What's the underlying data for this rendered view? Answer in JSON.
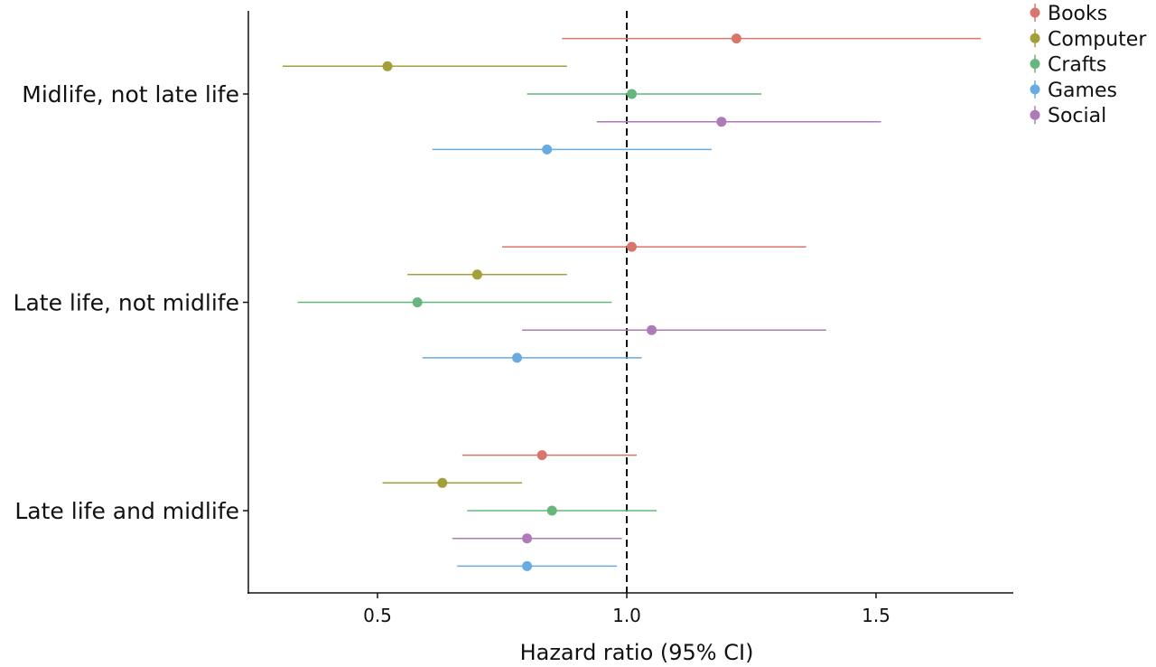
{
  "chart_data": {
    "type": "forest",
    "title": "",
    "xlabel": "Hazard ratio (95% CI)",
    "ylabel": "",
    "xlim": [
      0.25,
      1.78
    ],
    "xticks": [
      "0.5",
      "1.0",
      "1.5"
    ],
    "xtick_values": [
      0.5,
      1.0,
      1.5
    ],
    "reference_line": 1.0,
    "grid": false,
    "legend_placement": "top-right",
    "legend": [
      "Books",
      "Computer",
      "Crafts",
      "Games",
      "Social"
    ],
    "colors": {
      "Books": "#D9766C",
      "Computer": "#A3A03A",
      "Crafts": "#66B67E",
      "Games": "#68AAE2",
      "Social": "#AE7AB8"
    },
    "row_order": [
      "Books",
      "Computer",
      "Crafts",
      "Social",
      "Games"
    ],
    "groups": [
      {
        "label": "Midlife, not late life",
        "points": [
          {
            "series": "Books",
            "hr": 1.22,
            "lo": 0.87,
            "hi": 1.71
          },
          {
            "series": "Computer",
            "hr": 0.52,
            "lo": 0.31,
            "hi": 0.88
          },
          {
            "series": "Crafts",
            "hr": 1.01,
            "lo": 0.8,
            "hi": 1.27
          },
          {
            "series": "Social",
            "hr": 1.19,
            "lo": 0.94,
            "hi": 1.51
          },
          {
            "series": "Games",
            "hr": 0.84,
            "lo": 0.61,
            "hi": 1.17
          }
        ]
      },
      {
        "label": "Late life, not midlife",
        "points": [
          {
            "series": "Books",
            "hr": 1.01,
            "lo": 0.75,
            "hi": 1.36
          },
          {
            "series": "Computer",
            "hr": 0.7,
            "lo": 0.56,
            "hi": 0.88
          },
          {
            "series": "Crafts",
            "hr": 0.58,
            "lo": 0.34,
            "hi": 0.97
          },
          {
            "series": "Social",
            "hr": 1.05,
            "lo": 0.79,
            "hi": 1.4
          },
          {
            "series": "Games",
            "hr": 0.78,
            "lo": 0.59,
            "hi": 1.03
          }
        ]
      },
      {
        "label": "Late life and midlife",
        "points": [
          {
            "series": "Books",
            "hr": 0.83,
            "lo": 0.67,
            "hi": 1.02
          },
          {
            "series": "Computer",
            "hr": 0.63,
            "lo": 0.51,
            "hi": 0.79
          },
          {
            "series": "Crafts",
            "hr": 0.85,
            "lo": 0.68,
            "hi": 1.06
          },
          {
            "series": "Social",
            "hr": 0.8,
            "lo": 0.65,
            "hi": 0.99
          },
          {
            "series": "Games",
            "hr": 0.8,
            "lo": 0.66,
            "hi": 0.98
          }
        ]
      }
    ]
  }
}
